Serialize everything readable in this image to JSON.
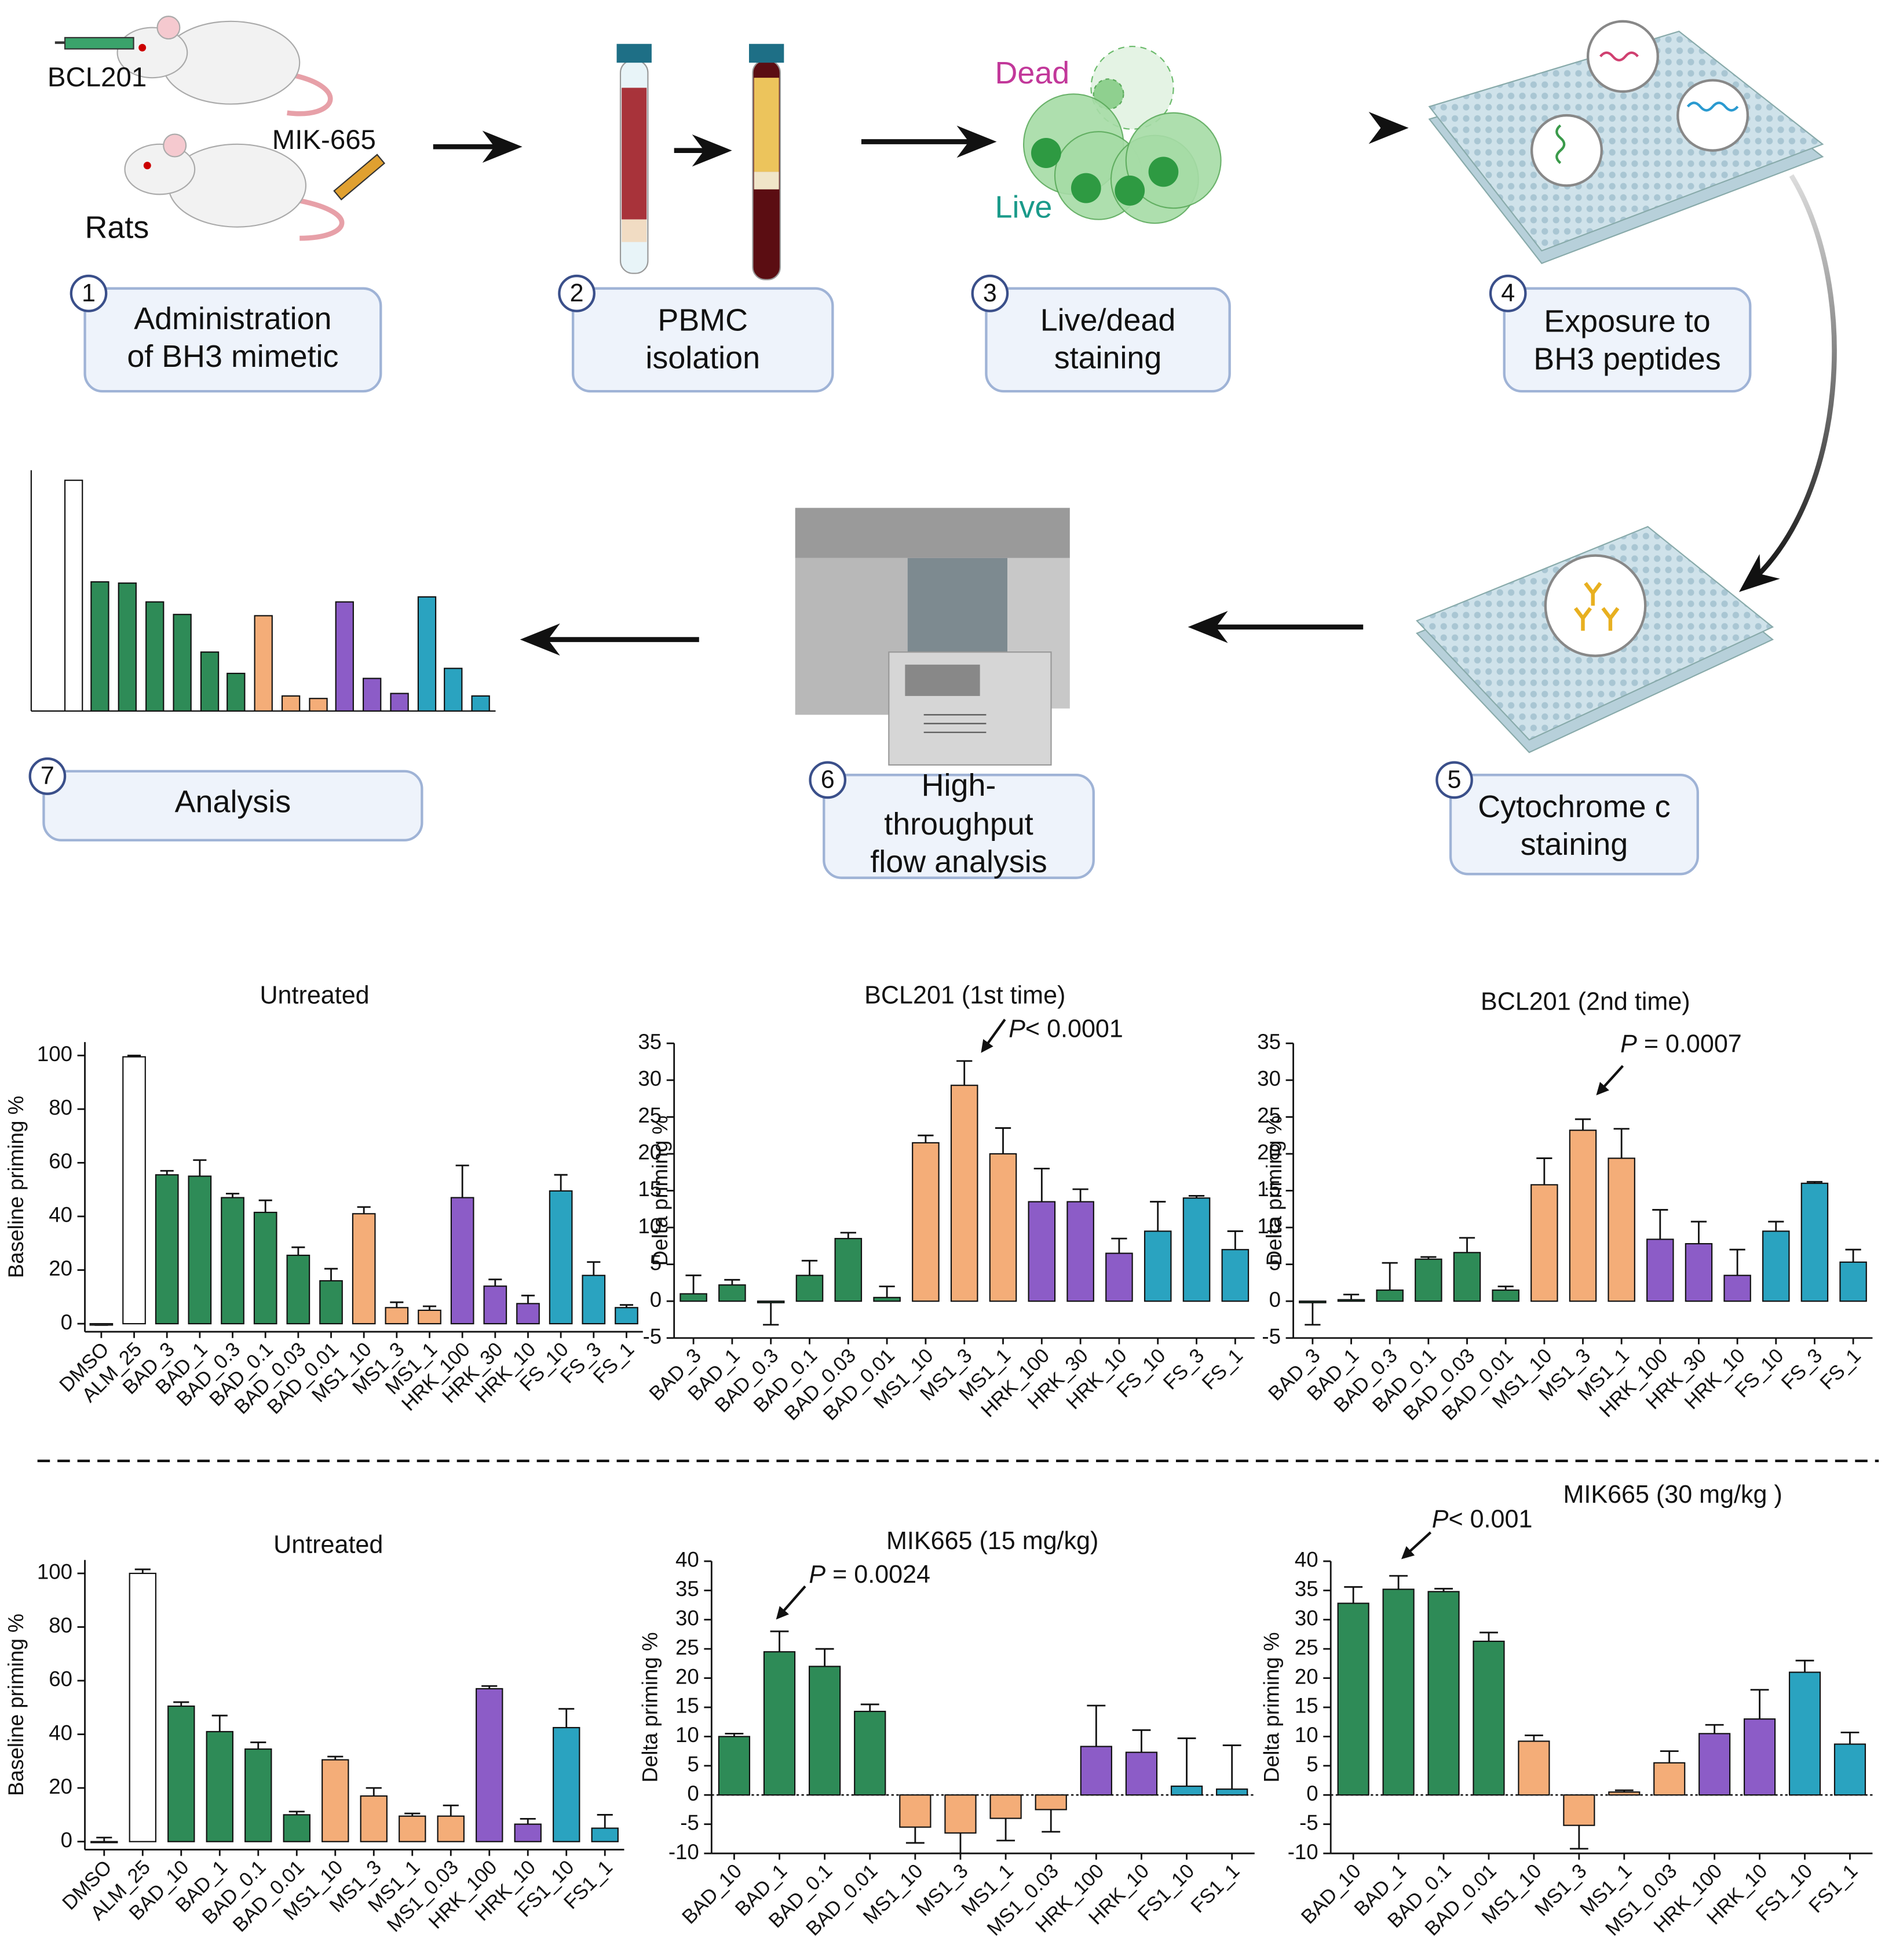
{
  "diagram": {
    "labels": {
      "drug_a": "BCL201",
      "drug_b": "MIK-665",
      "animal": "Rats",
      "dead": "Dead",
      "live": "Live"
    },
    "steps": [
      {
        "number": "1",
        "lines": [
          "Administration",
          "of BH3 mimetic"
        ]
      },
      {
        "number": "2",
        "lines": [
          "PBMC",
          "isolation"
        ]
      },
      {
        "number": "3",
        "lines": [
          "Live/dead",
          "staining"
        ]
      },
      {
        "number": "4",
        "lines": [
          "Exposure to",
          "BH3 peptides"
        ]
      },
      {
        "number": "5",
        "lines": [
          "Cytochrome c",
          "staining"
        ]
      },
      {
        "number": "6",
        "lines": [
          "High-",
          "throughput",
          "flow analysis"
        ]
      },
      {
        "number": "7",
        "lines": [
          "Analysis"
        ]
      }
    ]
  },
  "chart_data": [
    {
      "type": "bar",
      "title": "Untreated",
      "y_label": "Baseline priming %",
      "categories": [
        "DMSO",
        "ALM_25",
        "BAD_3",
        "BAD_1",
        "BAD_0.3",
        "BAD_0.1",
        "BAD_0.03",
        "BAD_0.01",
        "MS1_10",
        "MS1_3",
        "MS1_1",
        "HRK_100",
        "HRK_30",
        "HRK_10",
        "FS_10",
        "FS_3",
        "FS_1"
      ],
      "values": [
        -0.5,
        99.5,
        55.5,
        55,
        47,
        41.5,
        25.5,
        16,
        41,
        6,
        5,
        47,
        14,
        7.5,
        49.5,
        18,
        6
      ],
      "errors": [
        0,
        0.5,
        1.5,
        6,
        1.5,
        4.5,
        3,
        4.5,
        2.5,
        2,
        1.5,
        12,
        2.5,
        3,
        6,
        5,
        1
      ],
      "colors": [
        "#ffffff",
        "#ffffff",
        "#2e8b57",
        "#2e8b57",
        "#2e8b57",
        "#2e8b57",
        "#2e8b57",
        "#2e8b57",
        "#f4ad78",
        "#f4ad78",
        "#f4ad78",
        "#8c5cc7",
        "#8c5cc7",
        "#8c5cc7",
        "#2aa3c0",
        "#2aa3c0",
        "#2aa3c0"
      ],
      "ylim": [
        -3,
        105
      ],
      "yticks": [
        0,
        20,
        40,
        60,
        80,
        100
      ]
    },
    {
      "type": "bar",
      "title": "BCL201 (1st time)",
      "y_label": "Delta priming %",
      "categories": [
        "BAD_3",
        "BAD_1",
        "BAD_0.3",
        "BAD_0.1",
        "BAD_0.03",
        "BAD_0.01",
        "MS1_10",
        "MS1_3",
        "MS1_1",
        "HRK_100",
        "HRK_30",
        "HRK_10",
        "FS_10",
        "FS_3",
        "FS_1"
      ],
      "values": [
        1,
        2.2,
        -0.2,
        3.5,
        8.5,
        0.5,
        21.5,
        29.3,
        20,
        13.5,
        13.5,
        6.5,
        9.5,
        14,
        7
      ],
      "errors": [
        2.5,
        0.7,
        3,
        2,
        0.8,
        1.5,
        1,
        3.3,
        3.5,
        4.5,
        1.7,
        2,
        4,
        0.3,
        2.5
      ],
      "colors": [
        "#2e8b57",
        "#2e8b57",
        "#2e8b57",
        "#2e8b57",
        "#2e8b57",
        "#2e8b57",
        "#f4ad78",
        "#f4ad78",
        "#f4ad78",
        "#8c5cc7",
        "#8c5cc7",
        "#8c5cc7",
        "#2aa3c0",
        "#2aa3c0",
        "#2aa3c0"
      ],
      "ylim": [
        -5,
        35
      ],
      "yticks": [
        -5,
        0,
        5,
        10,
        15,
        20,
        25,
        30,
        35
      ],
      "annotation": {
        "prefix": "P",
        "text": "< 0.0001"
      }
    },
    {
      "type": "bar",
      "title": "BCL201 (2nd time)",
      "y_label": "Delta priming %",
      "categories": [
        "BAD_3",
        "BAD_1",
        "BAD_0.3",
        "BAD_0.1",
        "BAD_0.03",
        "BAD_0.01",
        "MS1_10",
        "MS1_3",
        "MS1_1",
        "HRK_100",
        "HRK_30",
        "HRK_10",
        "FS_10",
        "FS_3",
        "FS_1"
      ],
      "values": [
        -0.2,
        0.2,
        1.5,
        5.7,
        6.6,
        1.5,
        15.8,
        23.2,
        19.4,
        8.4,
        7.8,
        3.5,
        9.5,
        16,
        5.3
      ],
      "errors": [
        3,
        0.7,
        3.7,
        0.3,
        2,
        0.5,
        3.6,
        1.5,
        4,
        4,
        3,
        3.5,
        1.3,
        0.2,
        1.7
      ],
      "colors": [
        "#2e8b57",
        "#2e8b57",
        "#2e8b57",
        "#2e8b57",
        "#2e8b57",
        "#2e8b57",
        "#f4ad78",
        "#f4ad78",
        "#f4ad78",
        "#8c5cc7",
        "#8c5cc7",
        "#8c5cc7",
        "#2aa3c0",
        "#2aa3c0",
        "#2aa3c0"
      ],
      "ylim": [
        -5,
        35
      ],
      "yticks": [
        -5,
        0,
        5,
        10,
        15,
        20,
        25,
        30,
        35
      ],
      "annotation": {
        "prefix": "P",
        "text": " = 0.0007"
      }
    },
    {
      "type": "bar",
      "title": "Untreated",
      "y_label": "Baseline priming %",
      "categories": [
        "DMSO",
        "ALM_25",
        "BAD_10",
        "BAD_1",
        "BAD_0.1",
        "BAD_0.01",
        "MS1_10",
        "MS1_3",
        "MS1_1",
        "MS1_0.03",
        "HRK_100",
        "HRK_10",
        "FS1_10",
        "FS1_1"
      ],
      "values": [
        0,
        100,
        50.5,
        41,
        34.5,
        10,
        30.5,
        17,
        9.5,
        9.5,
        57,
        6.5,
        42.5,
        5
      ],
      "errors": [
        1.5,
        1.5,
        1.5,
        6,
        2.5,
        1.2,
        1.2,
        3,
        1,
        4,
        1,
        2,
        7,
        5
      ],
      "colors": [
        "#ffffff",
        "#ffffff",
        "#2e8b57",
        "#2e8b57",
        "#2e8b57",
        "#2e8b57",
        "#f4ad78",
        "#f4ad78",
        "#f4ad78",
        "#f4ad78",
        "#8c5cc7",
        "#8c5cc7",
        "#2aa3c0",
        "#2aa3c0"
      ],
      "ylim": [
        -3,
        105
      ],
      "yticks": [
        0,
        20,
        40,
        60,
        80,
        100
      ]
    },
    {
      "type": "bar",
      "title": "MIK665 (15 mg/kg)",
      "y_label": "Delta priming %",
      "categories": [
        "BAD_10",
        "BAD_1",
        "BAD_0.1",
        "BAD_0.01",
        "MS1_10",
        "MS1_3",
        "MS1_1",
        "MS1_0.03",
        "HRK_100",
        "HRK_10",
        "FS1_10",
        "FS1_1"
      ],
      "values": [
        10,
        24.5,
        22,
        14.3,
        -5.5,
        -6.5,
        -4,
        -2.5,
        8.3,
        7.3,
        1.5,
        1
      ],
      "errors": [
        0.5,
        3.5,
        3,
        1.2,
        2.7,
        3.5,
        3.8,
        3.8,
        7,
        3.8,
        8.2,
        7.5
      ],
      "colors": [
        "#2e8b57",
        "#2e8b57",
        "#2e8b57",
        "#2e8b57",
        "#f4ad78",
        "#f4ad78",
        "#f4ad78",
        "#f4ad78",
        "#8c5cc7",
        "#8c5cc7",
        "#2aa3c0",
        "#2aa3c0"
      ],
      "ylim": [
        -10,
        40
      ],
      "yticks": [
        -10,
        -5,
        0,
        5,
        10,
        15,
        20,
        25,
        30,
        35,
        40
      ],
      "zero_line": "dotted",
      "annotation": {
        "prefix": "P",
        "text": " = 0.0024"
      }
    },
    {
      "type": "bar",
      "title": "MIK665 (30 mg/kg )",
      "y_label": "Delta priming %",
      "categories": [
        "BAD_10",
        "BAD_1",
        "BAD_0.1",
        "BAD_0.01",
        "MS1_10",
        "MS1_3",
        "MS1_1",
        "MS1_0.03",
        "HRK_100",
        "HRK_10",
        "FS1_10",
        "FS1_1"
      ],
      "values": [
        32.8,
        35.2,
        34.8,
        26.3,
        9.2,
        -5.2,
        0.5,
        5.5,
        10.5,
        13,
        21,
        8.7
      ],
      "errors": [
        2.8,
        2.3,
        0.5,
        1.5,
        1,
        4,
        0.3,
        2,
        1.5,
        5,
        2,
        2
      ],
      "colors": [
        "#2e8b57",
        "#2e8b57",
        "#2e8b57",
        "#2e8b57",
        "#f4ad78",
        "#f4ad78",
        "#f4ad78",
        "#f4ad78",
        "#8c5cc7",
        "#8c5cc7",
        "#2aa3c0",
        "#2aa3c0"
      ],
      "ylim": [
        -10,
        40
      ],
      "yticks": [
        -10,
        -5,
        0,
        5,
        10,
        15,
        20,
        25,
        30,
        35,
        40
      ],
      "zero_line": "dotted",
      "annotation": {
        "prefix": "P",
        "text": "< 0.001"
      }
    }
  ]
}
